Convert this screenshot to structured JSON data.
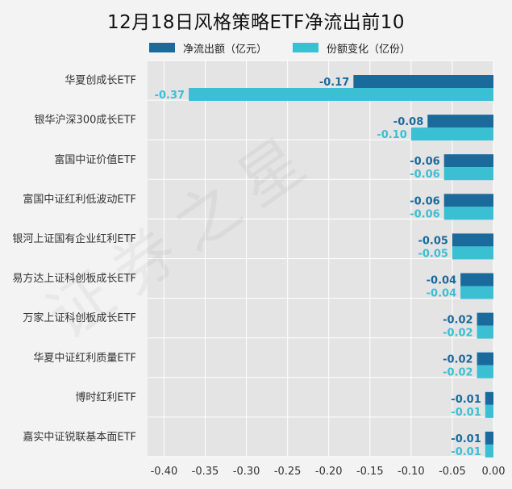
{
  "chart_data": {
    "type": "bar",
    "orientation": "horizontal",
    "title": "12月18日风格策略ETF净流出前10",
    "categories": [
      "华夏创成长ETF",
      "银华沪深300成长ETF",
      "富国中证价值ETF",
      "富国中证红利低波动ETF",
      "银河上证国有企业红利ETF",
      "易方达上证科创板成长ETF",
      "万家上证科创板成长ETF",
      "华夏中证红利质量ETF",
      "博时红利ETF",
      "嘉实中证锐联基本面ETF"
    ],
    "series": [
      {
        "name": "净流出额（亿元）",
        "color": "#1b6a9c",
        "values": [
          -0.17,
          -0.08,
          -0.06,
          -0.06,
          -0.05,
          -0.04,
          -0.02,
          -0.02,
          -0.01,
          -0.01
        ],
        "labels": [
          "-0.17",
          "-0.08",
          "-0.06",
          "-0.06",
          "-0.05",
          "-0.04",
          "-0.02",
          "-0.02",
          "-0.01",
          "-0.01"
        ]
      },
      {
        "name": "份额变化（亿份）",
        "color": "#3bbfd3",
        "values": [
          -0.37,
          -0.1,
          -0.06,
          -0.06,
          -0.05,
          -0.04,
          -0.02,
          -0.02,
          -0.01,
          -0.01
        ],
        "labels": [
          "-0.37",
          "-0.10",
          "-0.06",
          "-0.06",
          "-0.05",
          "-0.04",
          "-0.02",
          "-0.02",
          "-0.01",
          "-0.01"
        ]
      }
    ],
    "xlim": [
      -0.42,
      0.0
    ],
    "xticks": [
      -0.4,
      -0.35,
      -0.3,
      -0.25,
      -0.2,
      -0.15,
      -0.1,
      -0.05,
      0.0
    ],
    "xtick_labels": [
      "-0.40",
      "-0.35",
      "-0.30",
      "-0.25",
      "-0.20",
      "-0.15",
      "-0.10",
      "-0.05",
      "0.00"
    ],
    "grid": true,
    "legend": "top"
  },
  "watermark": "证券之星",
  "colors": {
    "plot_background": "#e4e4e4",
    "grid": "#ffffff"
  }
}
